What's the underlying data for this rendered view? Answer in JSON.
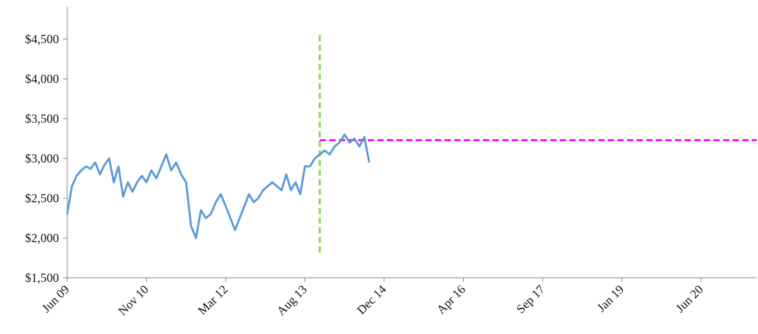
{
  "chart_data": {
    "type": "line",
    "title": "",
    "xlabel": "",
    "ylabel": "",
    "ylim": [
      1500,
      4600
    ],
    "yticks": [
      1500,
      2000,
      2500,
      3000,
      3500,
      4000,
      4500
    ],
    "ytick_labels": [
      "$1,500",
      "$2,000",
      "$2,500",
      "$3,000",
      "$3,500",
      "$4,000",
      "$4,500"
    ],
    "xtick_labels": [
      "Jun 09",
      "Nov 10",
      "Mar 12",
      "Aug 13",
      "Dec 14",
      "Apr 16",
      "Sep 17",
      "Jan 19",
      "Jun 20"
    ],
    "grid": false,
    "legend": "none",
    "series": [
      {
        "x": [
          "Jun 09",
          "Jul 09",
          "Aug 09",
          "Sep 09",
          "Oct 09",
          "Nov 09",
          "Dec 09",
          "Jan 10",
          "Feb 10",
          "Mar 10",
          "Apr 10",
          "May 10",
          "Jun 10",
          "Jul 10",
          "Aug 10",
          "Sep 10",
          "Oct 10",
          "Nov 10",
          "Dec 10",
          "Jan 11",
          "Feb 11",
          "Mar 11",
          "Apr 11",
          "May 11",
          "Jun 11",
          "Jul 11",
          "Aug 11",
          "Sep 11",
          "Oct 11",
          "Nov 11",
          "Dec 11",
          "Jan 12",
          "Feb 12",
          "Mar 12",
          "Apr 12",
          "May 12",
          "Jun 12",
          "Jul 12",
          "Aug 12",
          "Sep 12",
          "Oct 12",
          "Nov 12",
          "Dec 12",
          "Jan 13",
          "Feb 13",
          "Mar 13",
          "Apr 13",
          "May 13",
          "Jun 13",
          "Jul 13",
          "Aug 13",
          "Sep 13",
          "Oct 13",
          "Nov 13",
          "Dec 13",
          "Jan 14",
          "Feb 14",
          "Mar 14",
          "Apr 14",
          "May 14",
          "Jun 14",
          "Jul 14",
          "Aug 14",
          "Sep 14"
        ],
        "values": [
          2300,
          2650,
          2780,
          2850,
          2900,
          2870,
          2950,
          2800,
          2920,
          3000,
          2700,
          2900,
          2520,
          2700,
          2580,
          2700,
          2780,
          2700,
          2850,
          2750,
          2900,
          3050,
          2850,
          2950,
          2800,
          2700,
          2150,
          2000,
          2350,
          2250,
          2300,
          2450,
          2550,
          2400,
          2250,
          2100,
          2250,
          2400,
          2550,
          2450,
          2500,
          2600,
          2650,
          2700,
          2650,
          2600,
          2800,
          2600,
          2700,
          2550,
          2900,
          2900,
          3000,
          3050,
          3100,
          3050,
          3150,
          3200,
          3300,
          3200,
          3250,
          3150,
          3270,
          2950
        ],
        "color": "#5b9bd5"
      }
    ],
    "reference_lines": [
      {
        "orientation": "vertical",
        "x": "Nov 13",
        "y_range": [
          1800,
          4550
        ],
        "color": "#92d050",
        "style": "dashed"
      },
      {
        "orientation": "horizontal",
        "y": 3230,
        "x_from": "Nov 13",
        "x_to": "Aug 21",
        "color": "#ff00ff",
        "style": "dashed"
      }
    ]
  }
}
